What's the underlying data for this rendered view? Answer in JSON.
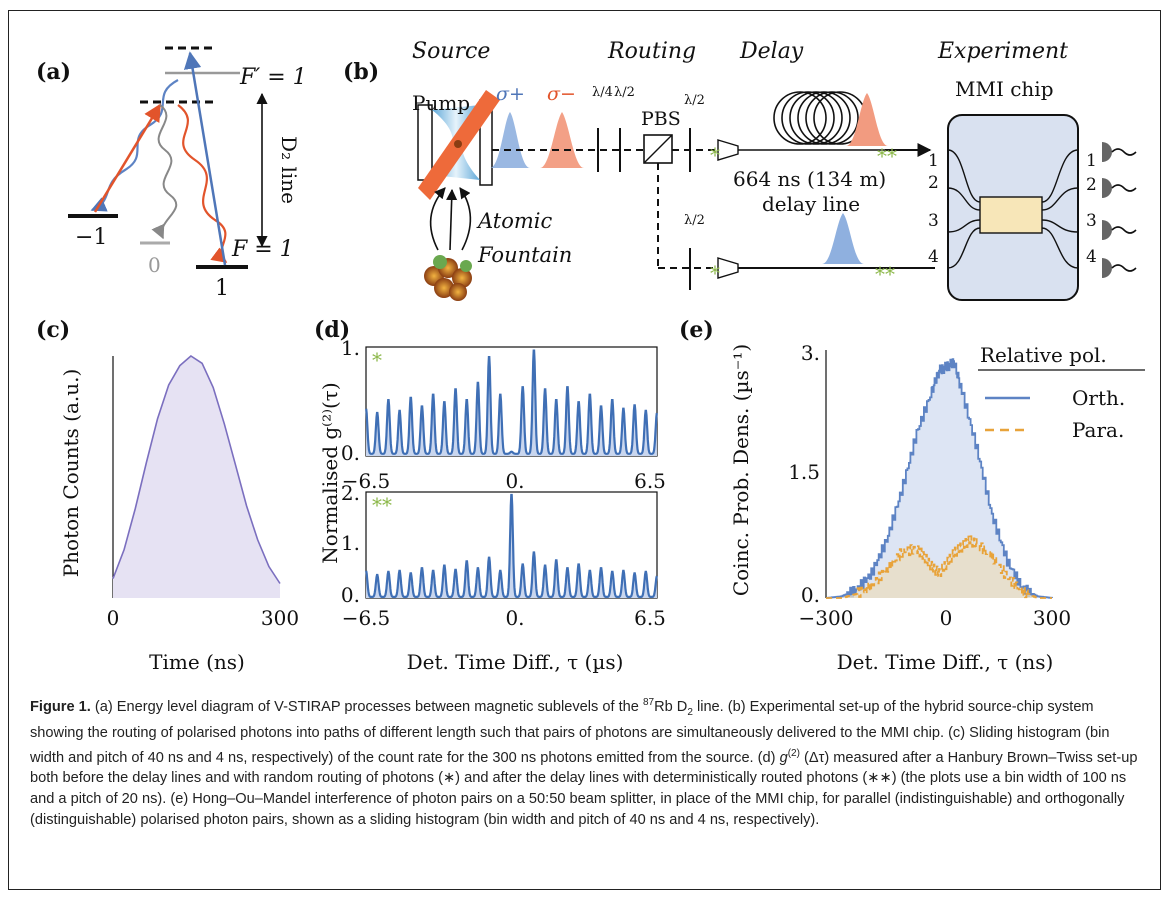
{
  "panels": {
    "a": {
      "label": "(a)",
      "f_prime": "F′ = 1",
      "f": "F = 1",
      "line_label": "D₂ line",
      "sublevels": [
        "−1",
        "0",
        "1"
      ]
    },
    "b": {
      "label": "(b)",
      "sections": [
        "Source",
        "Routing",
        "Delay",
        "Experiment"
      ],
      "pump": "Pump",
      "sigma_plus": "σ+",
      "sigma_minus": "σ−",
      "quarter_wave": "λ/4",
      "half_wave": "λ/2",
      "pbs": "PBS",
      "atomic": "Atomic",
      "fountain": "Fountain",
      "delay_value": "664 ns (134 m)",
      "delay_text": "delay line",
      "chip": "MMI chip",
      "star1": "*",
      "star2": "**",
      "ports": [
        "1",
        "2",
        "3",
        "4"
      ]
    },
    "c": {
      "label": "(c)",
      "ylabel": "Photon Counts (a.u.)",
      "xlabel": "Time (ns)",
      "xticks": [
        "0",
        "300"
      ]
    },
    "d": {
      "label": "(d)",
      "ylabel": "Normalised g⁽²⁾(τ)",
      "xlabel": "Det. Time Diff., τ (µs)",
      "top_marker": "*",
      "bottom_marker": "**",
      "top_yticks": [
        "1.",
        "0."
      ],
      "bottom_yticks": [
        "2.",
        "1.",
        "0."
      ],
      "xticks": [
        "−6.5",
        "0.",
        "6.5"
      ]
    },
    "e": {
      "label": "(e)",
      "ylabel": "Coinc. Prob. Dens. (µs⁻¹)",
      "xlabel": "Det. Time Diff., τ (ns)",
      "yticks": [
        "3.",
        "1.5",
        "0."
      ],
      "xticks": [
        "−300",
        "0",
        "300"
      ],
      "legend_title": "Relative pol.",
      "legend": [
        "Orth.",
        "Para."
      ]
    }
  },
  "chart_data": [
    {
      "type": "area",
      "panel": "c",
      "xlabel": "Time (ns)",
      "ylabel": "Photon Counts (a.u.)",
      "xlim": [
        0,
        300
      ],
      "x": [
        0,
        20,
        40,
        60,
        80,
        100,
        120,
        140,
        160,
        180,
        200,
        220,
        240,
        260,
        280,
        300
      ],
      "values": [
        0.08,
        0.2,
        0.37,
        0.56,
        0.74,
        0.88,
        0.96,
        1.0,
        0.97,
        0.87,
        0.72,
        0.55,
        0.38,
        0.24,
        0.13,
        0.06
      ]
    },
    {
      "type": "line",
      "panel": "d-top",
      "marker": "*",
      "xlim": [
        -6.5,
        6.5
      ],
      "ylim": [
        0,
        1
      ],
      "peak_spacing": 0.5,
      "peaks_x": [
        -6.5,
        -6.0,
        -5.5,
        -5.0,
        -4.5,
        -4.0,
        -3.5,
        -3.0,
        -2.5,
        -2.0,
        -1.5,
        -1.0,
        -0.5,
        0.0,
        0.5,
        1.0,
        1.5,
        2.0,
        2.5,
        3.0,
        3.5,
        4.0,
        4.5,
        5.0,
        5.5,
        6.0,
        6.5
      ],
      "peaks_y": [
        0.42,
        0.38,
        0.5,
        0.4,
        0.52,
        0.44,
        0.55,
        0.48,
        0.6,
        0.5,
        0.66,
        0.9,
        0.55,
        0.02,
        0.62,
        0.96,
        0.6,
        0.5,
        0.62,
        0.48,
        0.55,
        0.44,
        0.5,
        0.42,
        0.45,
        0.4,
        0.38
      ]
    },
    {
      "type": "line",
      "panel": "d-bottom",
      "marker": "**",
      "xlim": [
        -6.5,
        6.5
      ],
      "ylim": [
        0,
        2
      ],
      "peak_spacing": 0.5,
      "peaks_x": [
        -6.5,
        -6.0,
        -5.5,
        -5.0,
        -4.5,
        -4.0,
        -3.5,
        -3.0,
        -2.5,
        -2.0,
        -1.5,
        -1.0,
        -0.5,
        0.0,
        0.5,
        1.0,
        1.5,
        2.0,
        2.5,
        3.0,
        3.5,
        4.0,
        4.5,
        5.0,
        5.5,
        6.0,
        6.5
      ],
      "peaks_y": [
        0.5,
        0.42,
        0.48,
        0.5,
        0.45,
        0.55,
        0.5,
        0.6,
        0.52,
        0.68,
        0.55,
        0.75,
        0.5,
        1.95,
        0.62,
        0.85,
        0.6,
        0.7,
        0.55,
        0.62,
        0.5,
        0.55,
        0.48,
        0.5,
        0.45,
        0.48,
        0.4
      ]
    },
    {
      "type": "area",
      "panel": "e",
      "xlabel": "Det. Time Diff., τ (ns)",
      "ylabel": "Coinc. Prob. Dens. (µs⁻¹)",
      "xlim": [
        -300,
        300
      ],
      "ylim": [
        0,
        3
      ],
      "legend_position": "top-right",
      "series": [
        {
          "name": "Orth.",
          "x": [
            -300,
            -260,
            -220,
            -180,
            -140,
            -100,
            -60,
            -20,
            0,
            20,
            40,
            60,
            100,
            140,
            180,
            220,
            260,
            300
          ],
          "values": [
            0.0,
            0.02,
            0.1,
            0.3,
            0.7,
            1.3,
            2.0,
            2.5,
            2.75,
            2.8,
            2.85,
            2.5,
            1.8,
            1.0,
            0.45,
            0.12,
            0.02,
            0.0
          ]
        },
        {
          "name": "Para.",
          "x": [
            -300,
            -260,
            -220,
            -180,
            -140,
            -100,
            -60,
            -40,
            -20,
            0,
            20,
            40,
            60,
            80,
            100,
            140,
            180,
            220,
            260,
            300
          ],
          "values": [
            0.0,
            0.0,
            0.05,
            0.15,
            0.35,
            0.55,
            0.6,
            0.5,
            0.38,
            0.3,
            0.42,
            0.55,
            0.62,
            0.7,
            0.65,
            0.5,
            0.25,
            0.08,
            0.0,
            0.0
          ]
        }
      ]
    }
  ],
  "caption": {
    "lead": "Figure 1.",
    "p1": " (a) Energy level diagram of V-STIRAP processes between magnetic sublevels of the ",
    "iso_sup": "87",
    "p2": "Rb D",
    "d_sub": "2",
    "p3": " line. (b) Experimental set-up of the hybrid source-chip system showing the routing of polarised photons into paths of different length such that pairs of photons are simultaneously delivered to the MMI chip. (c) Sliding histogram (bin width and pitch of 40 ns and 4 ns, respectively) of the count rate for the 300 ns photons emitted from the source. (d) ",
    "g": "g",
    "g_sup": "(2)",
    "p4": " (Δτ) measured after a Hanbury Brown–Twiss set-up both before the delay lines and with random routing of photons (∗) and after the delay lines with deterministically routed photons (∗∗) (the plots use a bin width of 100 ns and a pitch of 20 ns). (e) Hong–Ou–Mandel interference of photon pairs on a 50:50 beam splitter, in place of the MMI chip, for parallel (indistinguishable) and orthogonally (distinguishable) polarised photon pairs, shown as a sliding histogram (bin width and pitch of 40 ns and 4 ns, respectively)."
  }
}
